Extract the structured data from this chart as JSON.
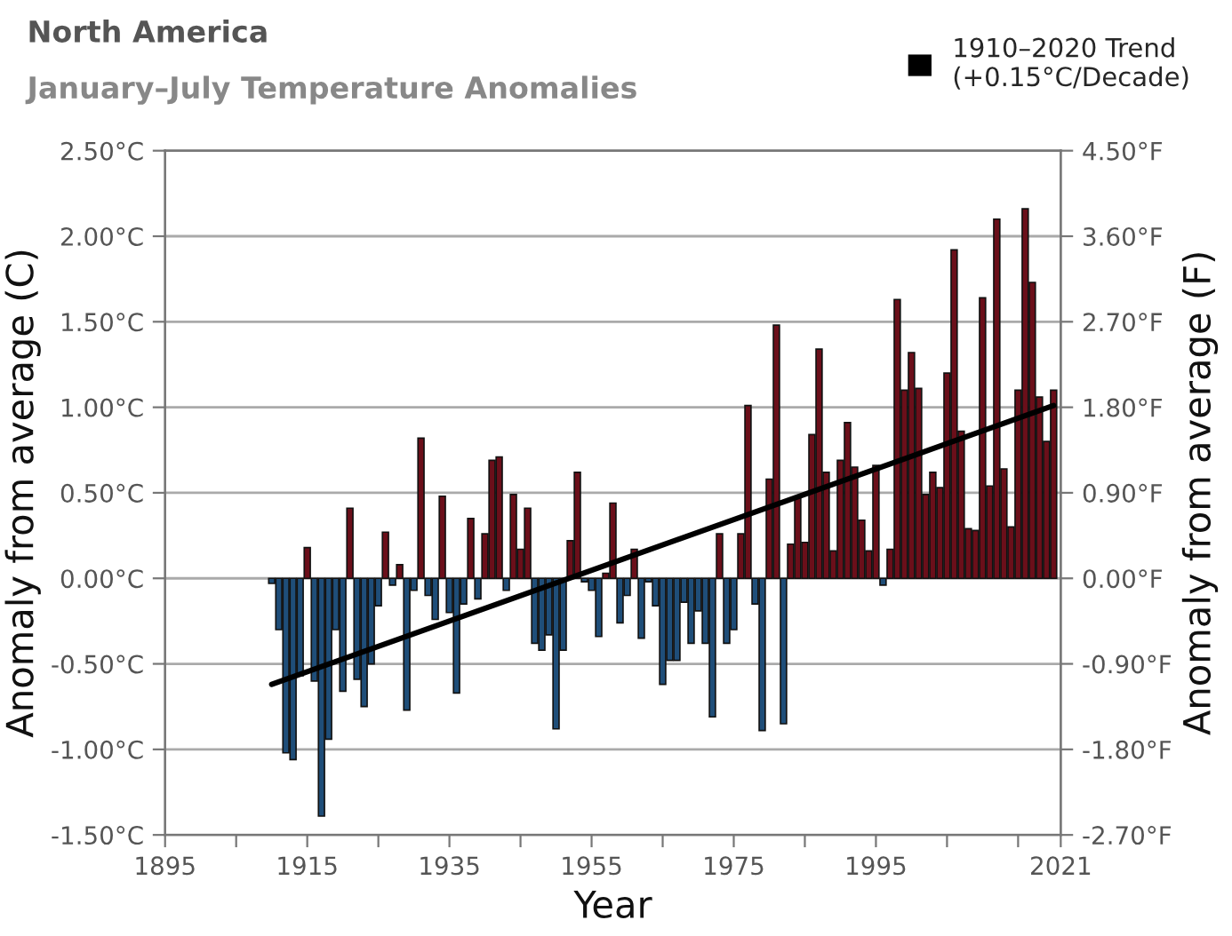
{
  "chart_data": {
    "type": "bar",
    "title": "North America",
    "subtitle": "January–July Temperature Anomalies",
    "xlabel": "Year",
    "ylabel": "Anomaly from average (C)",
    "y2label": "Anomaly from average (F)",
    "xlim": [
      1895,
      2021
    ],
    "xticks": [
      {
        "value": 1895,
        "label": "1895"
      },
      {
        "value": 1905,
        "label": null
      },
      {
        "value": 1915,
        "label": "1915"
      },
      {
        "value": 1925,
        "label": null
      },
      {
        "value": 1935,
        "label": "1935"
      },
      {
        "value": 1945,
        "label": null
      },
      {
        "value": 1955,
        "label": "1955"
      },
      {
        "value": 1965,
        "label": null
      },
      {
        "value": 1975,
        "label": "1975"
      },
      {
        "value": 1985,
        "label": null
      },
      {
        "value": 1995,
        "label": "1995"
      },
      {
        "value": 2005,
        "label": null
      },
      {
        "value": 2015,
        "label": null
      },
      {
        "value": 2021,
        "label": "2021"
      }
    ],
    "ylim": [
      -1.5,
      2.5
    ],
    "yticks": [
      {
        "value": -1.5,
        "label": "-1.50°C"
      },
      {
        "value": -1.0,
        "label": "-1.00°C"
      },
      {
        "value": -0.5,
        "label": "-0.50°C"
      },
      {
        "value": 0.0,
        "label": "0.00°C"
      },
      {
        "value": 0.5,
        "label": "0.50°C"
      },
      {
        "value": 1.0,
        "label": "1.00°C"
      },
      {
        "value": 1.5,
        "label": "1.50°C"
      },
      {
        "value": 2.0,
        "label": "2.00°C"
      },
      {
        "value": 2.5,
        "label": "2.50°C"
      }
    ],
    "y2lim": [
      -2.7,
      4.5
    ],
    "y2ticks": [
      {
        "value": -2.7,
        "label": "-2.70°F"
      },
      {
        "value": -1.8,
        "label": "-1.80°F"
      },
      {
        "value": -0.9,
        "label": "-0.90°F"
      },
      {
        "value": 0.0,
        "label": "0.00°F"
      },
      {
        "value": 0.9,
        "label": "0.90°F"
      },
      {
        "value": 1.8,
        "label": "1.80°F"
      },
      {
        "value": 2.7,
        "label": "2.70°F"
      },
      {
        "value": 3.6,
        "label": "3.60°F"
      },
      {
        "value": 4.5,
        "label": "4.50°F"
      }
    ],
    "grid": "y",
    "legend": "top right",
    "series": [
      {
        "x": [
          1910,
          1911,
          1912,
          1913,
          1914,
          1915,
          1916,
          1917,
          1918,
          1919,
          1920,
          1921,
          1922,
          1923,
          1924,
          1925,
          1926,
          1927,
          1928,
          1929,
          1930,
          1931,
          1932,
          1933,
          1934,
          1935,
          1936,
          1937,
          1938,
          1939,
          1940,
          1941,
          1942,
          1943,
          1944,
          1945,
          1946,
          1947,
          1948,
          1949,
          1950,
          1951,
          1952,
          1953,
          1954,
          1955,
          1956,
          1957,
          1958,
          1959,
          1960,
          1961,
          1962,
          1963,
          1964,
          1965,
          1966,
          1967,
          1968,
          1969,
          1970,
          1971,
          1972,
          1973,
          1974,
          1975,
          1976,
          1977,
          1978,
          1979,
          1980,
          1981,
          1982,
          1983,
          1984,
          1985,
          1986,
          1987,
          1988,
          1989,
          1990,
          1991,
          1992,
          1993,
          1994,
          1995,
          1996,
          1997,
          1998,
          1999,
          2000,
          2001,
          2002,
          2003,
          2004,
          2005,
          2006,
          2007,
          2008,
          2009,
          2010,
          2011,
          2012,
          2013,
          2014,
          2015,
          2016,
          2017,
          2018,
          2019,
          2020
        ],
        "values": [
          -0.03,
          -0.3,
          -1.02,
          -1.06,
          -0.57,
          0.18,
          -0.6,
          -1.39,
          -0.94,
          -0.3,
          -0.66,
          0.41,
          -0.59,
          -0.75,
          -0.5,
          -0.16,
          0.27,
          -0.04,
          0.08,
          -0.77,
          -0.07,
          0.82,
          -0.1,
          -0.24,
          0.48,
          -0.2,
          -0.67,
          -0.15,
          0.35,
          -0.12,
          0.26,
          0.69,
          0.71,
          -0.07,
          0.49,
          0.17,
          0.41,
          -0.38,
          -0.42,
          -0.33,
          -0.88,
          -0.42,
          0.22,
          0.62,
          -0.02,
          -0.07,
          -0.34,
          0.03,
          0.44,
          -0.26,
          -0.1,
          0.17,
          -0.35,
          -0.02,
          -0.16,
          -0.62,
          -0.48,
          -0.48,
          -0.14,
          -0.38,
          -0.19,
          -0.38,
          -0.81,
          0.26,
          -0.38,
          -0.3,
          0.26,
          1.01,
          -0.15,
          -0.89,
          0.58,
          1.48,
          -0.85,
          0.2,
          0.48,
          0.21,
          0.84,
          1.34,
          0.62,
          0.16,
          0.69,
          0.91,
          0.65,
          0.34,
          0.16,
          0.66,
          -0.04,
          0.17,
          1.63,
          1.1,
          1.32,
          1.11,
          0.49,
          0.62,
          0.53,
          1.2,
          1.92,
          0.86,
          0.29,
          0.28,
          1.64,
          0.54,
          2.1,
          0.64,
          0.3,
          1.1,
          2.16,
          1.73,
          1.06,
          0.8,
          1.1
        ],
        "colors": [
          "#1f4e79",
          "#1f4e79",
          "#1f4e79",
          "#1f4e79",
          "#1f4e79",
          "#6b0f1a",
          "#1f4e79",
          "#1f4e79",
          "#1f4e79",
          "#1f4e79",
          "#1f4e79",
          "#6b0f1a",
          "#1f4e79",
          "#1f4e79",
          "#1f4e79",
          "#1f4e79",
          "#6b0f1a",
          "#1f4e79",
          "#6b0f1a",
          "#1f4e79",
          "#1f4e79",
          "#6b0f1a",
          "#1f4e79",
          "#1f4e79",
          "#6b0f1a",
          "#1f4e79",
          "#1f4e79",
          "#1f4e79",
          "#6b0f1a",
          "#1f4e79",
          "#6b0f1a",
          "#6b0f1a",
          "#6b0f1a",
          "#1f4e79",
          "#6b0f1a",
          "#6b0f1a",
          "#6b0f1a",
          "#1f4e79",
          "#1f4e79",
          "#1f4e79",
          "#1f4e79",
          "#1f4e79",
          "#6b0f1a",
          "#6b0f1a",
          "#1f4e79",
          "#1f4e79",
          "#1f4e79",
          "#6b0f1a",
          "#6b0f1a",
          "#1f4e79",
          "#1f4e79",
          "#6b0f1a",
          "#1f4e79",
          "#1f4e79",
          "#1f4e79",
          "#1f4e79",
          "#1f4e79",
          "#1f4e79",
          "#1f4e79",
          "#1f4e79",
          "#1f4e79",
          "#1f4e79",
          "#1f4e79",
          "#6b0f1a",
          "#1f4e79",
          "#1f4e79",
          "#6b0f1a",
          "#6b0f1a",
          "#1f4e79",
          "#1f4e79",
          "#6b0f1a",
          "#6b0f1a",
          "#1f4e79",
          "#6b0f1a",
          "#6b0f1a",
          "#6b0f1a",
          "#6b0f1a",
          "#6b0f1a",
          "#6b0f1a",
          "#6b0f1a",
          "#6b0f1a",
          "#6b0f1a",
          "#6b0f1a",
          "#6b0f1a",
          "#6b0f1a",
          "#6b0f1a",
          "#1f4e79",
          "#6b0f1a",
          "#6b0f1a",
          "#6b0f1a",
          "#6b0f1a",
          "#6b0f1a",
          "#6b0f1a",
          "#6b0f1a",
          "#6b0f1a",
          "#6b0f1a",
          "#6b0f1a",
          "#6b0f1a",
          "#6b0f1a",
          "#6b0f1a",
          "#6b0f1a",
          "#6b0f1a",
          "#6b0f1a",
          "#6b0f1a",
          "#6b0f1a",
          "#6b0f1a",
          "#6b0f1a",
          "#6b0f1a",
          "#6b0f1a",
          "#6b0f1a",
          "#6b0f1a"
        ]
      },
      {
        "type": "line",
        "name": "1910–2020 Trend\n(+0.15°C/Decade)",
        "color": "#000000",
        "x": [
          1910,
          2020
        ],
        "values": [
          -0.62,
          1.01
        ]
      }
    ]
  }
}
